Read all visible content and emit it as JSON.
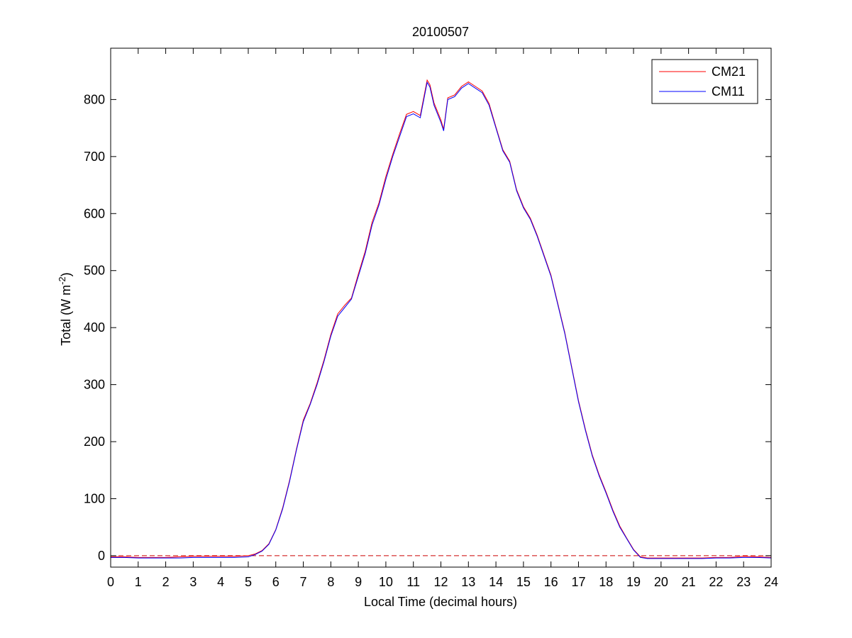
{
  "chart_data": {
    "type": "line",
    "title": "20100507",
    "xlabel": "Local Time (decimal hours)",
    "ylabel": "Total (W m",
    "ylabel_sup": "-2",
    "ylabel_close": ")",
    "xlim": [
      0,
      24
    ],
    "ylim": [
      -20,
      890
    ],
    "xticks": [
      0,
      1,
      2,
      3,
      4,
      5,
      6,
      7,
      8,
      9,
      10,
      11,
      12,
      13,
      14,
      15,
      16,
      17,
      18,
      19,
      20,
      21,
      22,
      23,
      24
    ],
    "xtick_labels": [
      "0",
      "1",
      "2",
      "3",
      "4",
      "5",
      "6",
      "7",
      "8",
      "9",
      "10",
      "11",
      "12",
      "13",
      "14",
      "15",
      "16",
      "17",
      "18",
      "19",
      "20",
      "21",
      "22",
      "23",
      "24"
    ],
    "yticks": [
      0,
      100,
      200,
      300,
      400,
      500,
      600,
      700,
      800
    ],
    "ytick_labels": [
      "0",
      "100",
      "200",
      "300",
      "400",
      "500",
      "600",
      "700",
      "800"
    ],
    "grid": false,
    "legend_position": "top-right",
    "reference_line": {
      "y": 0,
      "style": "dashed",
      "color": "#cc0000"
    },
    "series": [
      {
        "name": "CM21",
        "color": "#ff0000"
      },
      {
        "name": "CM11",
        "color": "#0000ff"
      }
    ],
    "x": [
      0,
      0.5,
      1,
      1.5,
      2,
      2.5,
      3,
      3.5,
      4,
      4.5,
      5,
      5.25,
      5.5,
      5.75,
      6,
      6.25,
      6.5,
      6.75,
      7,
      7.25,
      7.5,
      7.75,
      8,
      8.25,
      8.5,
      8.75,
      9,
      9.25,
      9.5,
      9.75,
      10,
      10.25,
      10.5,
      10.75,
      11,
      11.25,
      11.5,
      11.6,
      11.75,
      12,
      12.1,
      12.25,
      12.5,
      12.75,
      13,
      13.25,
      13.5,
      13.75,
      14,
      14.25,
      14.5,
      14.75,
      15,
      15.25,
      15.5,
      15.75,
      16,
      16.25,
      16.5,
      16.75,
      17,
      17.25,
      17.5,
      17.75,
      18,
      18.25,
      18.5,
      18.75,
      19,
      19.25,
      19.5,
      20,
      20.5,
      21,
      21.5,
      22,
      22.5,
      23,
      23.5,
      24
    ],
    "series_values": {
      "CM11": [
        -3,
        -3,
        -4,
        -4,
        -4,
        -4,
        -3,
        -3,
        -3,
        -3,
        -2,
        2,
        8,
        20,
        45,
        82,
        130,
        185,
        235,
        265,
        300,
        340,
        385,
        420,
        435,
        450,
        490,
        530,
        580,
        615,
        660,
        700,
        735,
        770,
        775,
        768,
        830,
        822,
        790,
        760,
        745,
        800,
        805,
        820,
        828,
        820,
        812,
        790,
        750,
        710,
        690,
        640,
        610,
        590,
        560,
        525,
        490,
        440,
        390,
        330,
        270,
        220,
        175,
        140,
        110,
        78,
        50,
        30,
        10,
        -3,
        -5,
        -5,
        -5,
        -5,
        -5,
        -4,
        -4,
        -3,
        -3,
        -4
      ],
      "CM21": [
        -2,
        -2,
        -3,
        -3,
        -3,
        -2,
        -1,
        -1,
        -1,
        -1,
        0,
        3,
        9,
        21,
        46,
        84,
        132,
        187,
        238,
        267,
        303,
        343,
        388,
        424,
        439,
        452,
        494,
        534,
        585,
        619,
        665,
        704,
        740,
        774,
        779,
        772,
        834,
        826,
        794,
        764,
        748,
        803,
        808,
        823,
        831,
        823,
        815,
        793,
        752,
        712,
        692,
        642,
        612,
        592,
        562,
        527,
        492,
        442,
        392,
        332,
        272,
        222,
        177,
        142,
        112,
        80,
        52,
        31,
        11,
        -2,
        -4,
        -4,
        -4,
        -4,
        -4,
        -3,
        -3,
        -1,
        -2,
        -3
      ]
    }
  }
}
